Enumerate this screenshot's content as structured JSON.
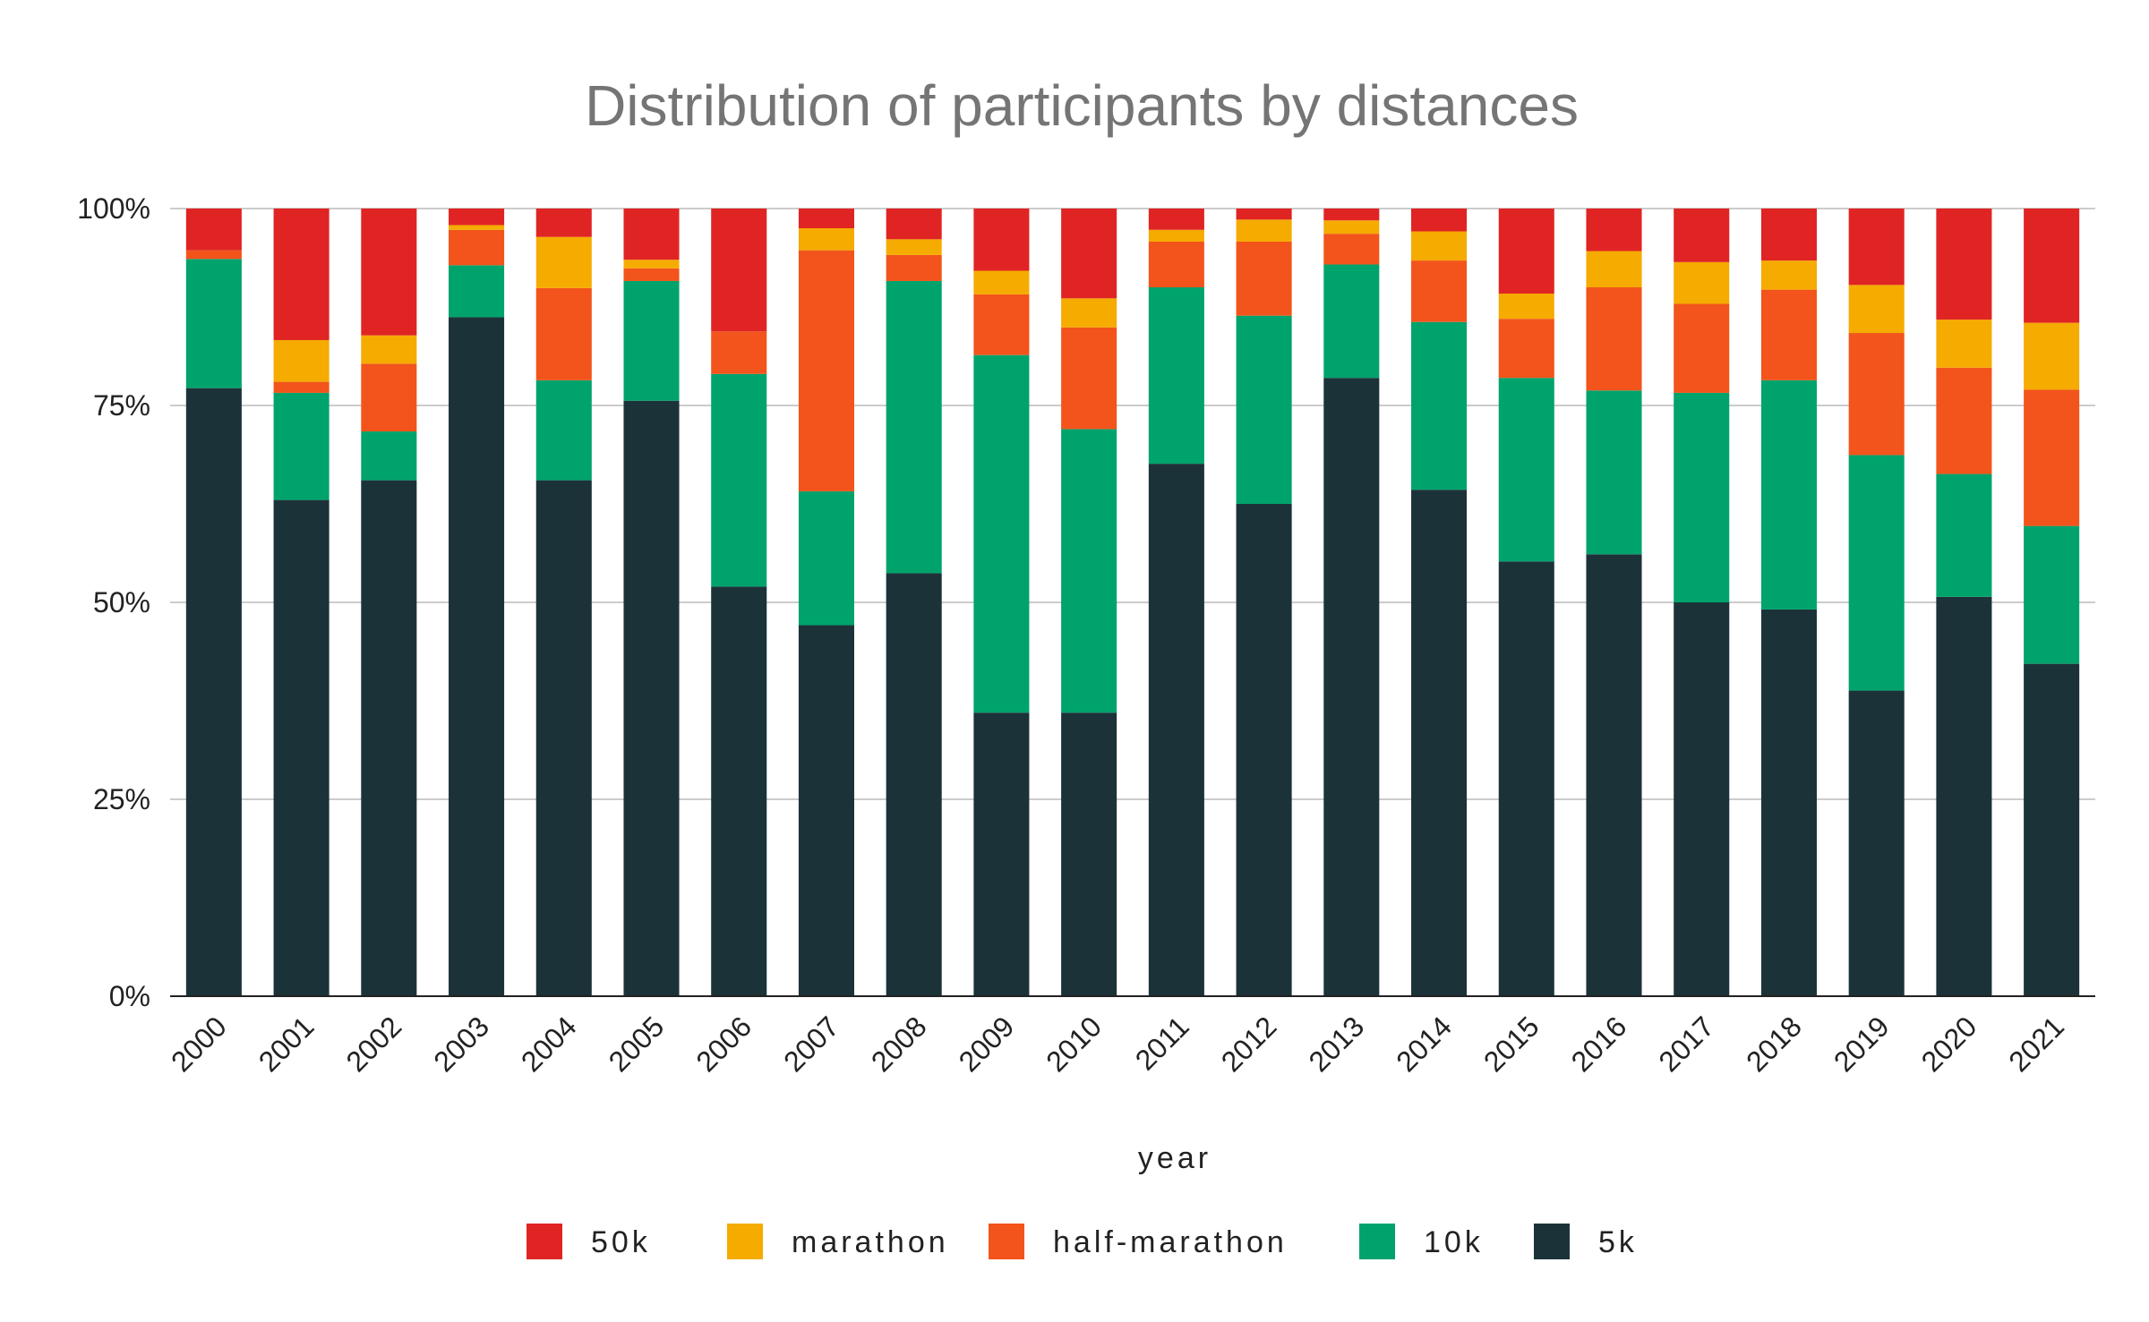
{
  "chart_data": {
    "type": "bar",
    "stacked": "percent",
    "title": "Distribution of participants by distances",
    "xlabel": "year",
    "ylabel": "",
    "ylim": [
      0,
      100
    ],
    "y_ticks": [
      "0%",
      "25%",
      "50%",
      "75%",
      "100%"
    ],
    "grid": true,
    "legend_position": "bottom",
    "categories": [
      "2000",
      "2001",
      "2002",
      "2003",
      "2004",
      "2005",
      "2006",
      "2007",
      "2008",
      "2009",
      "2010",
      "2011",
      "2012",
      "2013",
      "2014",
      "2015",
      "2016",
      "2017",
      "2018",
      "2019",
      "2020",
      "2021"
    ],
    "series": [
      {
        "name": "5k",
        "color": "#1c3239",
        "values": [
          77.2,
          63.0,
          65.5,
          86.2,
          65.5,
          75.6,
          52.0,
          47.1,
          53.7,
          36.0,
          36.0,
          67.6,
          62.5,
          78.5,
          64.3,
          55.2,
          56.1,
          50.0,
          49.1,
          38.8,
          50.7,
          42.2
        ]
      },
      {
        "name": "10k",
        "color": "#00a36c",
        "values": [
          16.4,
          13.6,
          6.2,
          6.6,
          12.7,
          15.2,
          27.0,
          17.0,
          37.1,
          45.4,
          36.0,
          22.4,
          23.9,
          14.4,
          21.3,
          23.3,
          20.8,
          26.6,
          29.1,
          29.9,
          15.6,
          17.5
        ]
      },
      {
        "name": "half-marathon",
        "color": "#f2541b",
        "values": [
          1.1,
          1.4,
          8.6,
          4.5,
          11.7,
          1.6,
          5.4,
          30.6,
          3.3,
          7.7,
          12.9,
          5.8,
          9.4,
          3.9,
          7.8,
          7.5,
          13.1,
          11.3,
          11.5,
          15.5,
          13.5,
          17.3
        ]
      },
      {
        "name": "marathon",
        "color": "#f5ab00",
        "values": [
          0.0,
          5.3,
          3.6,
          0.6,
          6.5,
          1.1,
          0.0,
          2.8,
          2.0,
          3.0,
          3.7,
          1.5,
          2.8,
          1.7,
          3.7,
          3.2,
          4.6,
          5.3,
          3.7,
          6.1,
          6.1,
          8.5
        ]
      },
      {
        "name": "50k",
        "color": "#e02424",
        "values": [
          5.3,
          16.7,
          16.1,
          2.1,
          3.6,
          6.5,
          15.6,
          2.5,
          3.9,
          7.9,
          11.4,
          2.7,
          1.4,
          1.5,
          2.9,
          10.8,
          5.4,
          6.8,
          6.6,
          9.7,
          14.1,
          14.5
        ]
      }
    ],
    "legend_order": [
      "50k",
      "marathon",
      "half-marathon",
      "10k",
      "5k"
    ]
  }
}
